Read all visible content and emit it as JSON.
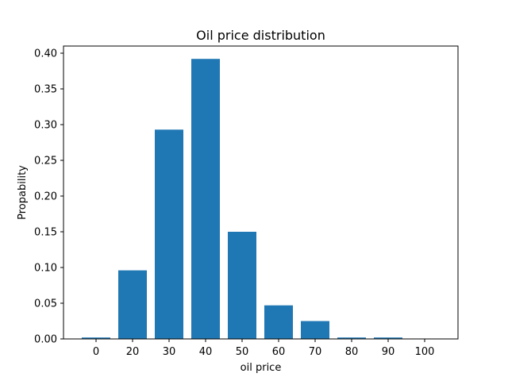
{
  "chart_data": {
    "type": "bar",
    "title": "Oil price distribution",
    "xlabel": "oil price",
    "ylabel": "Propability",
    "categories": [
      "0",
      "20",
      "30",
      "40",
      "50",
      "60",
      "70",
      "80",
      "90",
      "100"
    ],
    "values": [
      0.002,
      0.096,
      0.293,
      0.392,
      0.15,
      0.047,
      0.025,
      0.002,
      0.002,
      0.0
    ],
    "ylim": [
      0,
      0.41
    ],
    "yticks": [
      0.0,
      0.05,
      0.1,
      0.15,
      0.2,
      0.25,
      0.3,
      0.35,
      0.4
    ],
    "ytick_labels": [
      "0.00",
      "0.05",
      "0.10",
      "0.15",
      "0.20",
      "0.25",
      "0.30",
      "0.35",
      "0.40"
    ],
    "grid": false,
    "legend": "none",
    "bar_color": "#1f77b4"
  }
}
